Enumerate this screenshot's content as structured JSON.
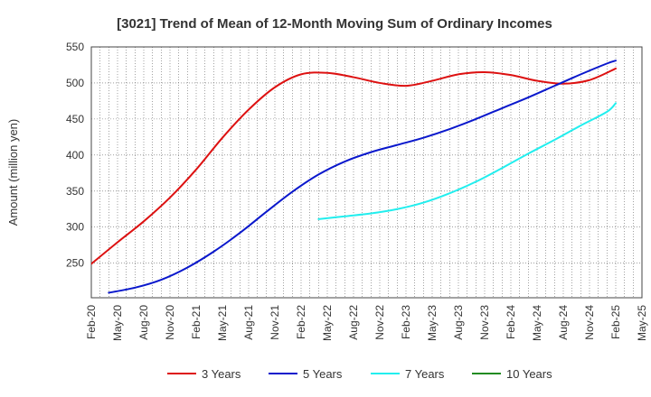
{
  "chart_data": {
    "type": "line",
    "title": "[3021]  Trend of Mean of 12-Month Moving Sum of Ordinary Incomes",
    "xlabel": "",
    "ylabel": "Amount (million yen)",
    "ylim": [
      202,
      550
    ],
    "yticks": [
      250,
      300,
      350,
      400,
      450,
      500,
      550
    ],
    "xlim": [
      0,
      63
    ],
    "xtick_labels": [
      "Feb-20",
      "May-20",
      "Aug-20",
      "Nov-20",
      "Feb-21",
      "May-21",
      "Aug-21",
      "Nov-21",
      "Feb-22",
      "May-22",
      "Aug-22",
      "Nov-22",
      "Feb-23",
      "May-23",
      "Aug-23",
      "Nov-23",
      "Feb-24",
      "May-24",
      "Aug-24",
      "Nov-24",
      "Feb-25",
      "May-25"
    ],
    "grid": true,
    "legend_position": "bottom",
    "series": [
      {
        "name": "3 Years",
        "color": "#dd1111",
        "x": [
          0,
          3,
          6,
          9,
          12,
          15,
          18,
          21,
          24,
          27,
          30,
          33,
          36,
          39,
          42,
          45,
          48,
          51,
          54,
          57,
          60
        ],
        "values": [
          249,
          279,
          308,
          341,
          380,
          424,
          463,
          494,
          512,
          514,
          508,
          500,
          496,
          503,
          512,
          515,
          511,
          503,
          499,
          504,
          520
        ]
      },
      {
        "name": "5 Years",
        "color": "#0a18cc",
        "x": [
          2,
          5,
          8,
          11,
          14,
          17,
          20,
          23,
          26,
          29,
          32,
          35,
          38,
          41,
          44,
          47,
          50,
          53,
          56,
          59,
          60
        ],
        "values": [
          209,
          216,
          227,
          244,
          266,
          292,
          321,
          349,
          373,
          391,
          404,
          414,
          424,
          436,
          450,
          465,
          480,
          496,
          512,
          527,
          531
        ]
      },
      {
        "name": "7 Years",
        "color": "#22eeee",
        "x": [
          26,
          29,
          32,
          35,
          38,
          41,
          44,
          47,
          50,
          53,
          56,
          59,
          60
        ],
        "values": [
          311,
          315,
          319,
          325,
          334,
          347,
          363,
          382,
          402,
          421,
          441,
          460,
          472
        ]
      },
      {
        "name": "10 Years",
        "color": "#228b22",
        "x": [],
        "values": []
      }
    ]
  }
}
